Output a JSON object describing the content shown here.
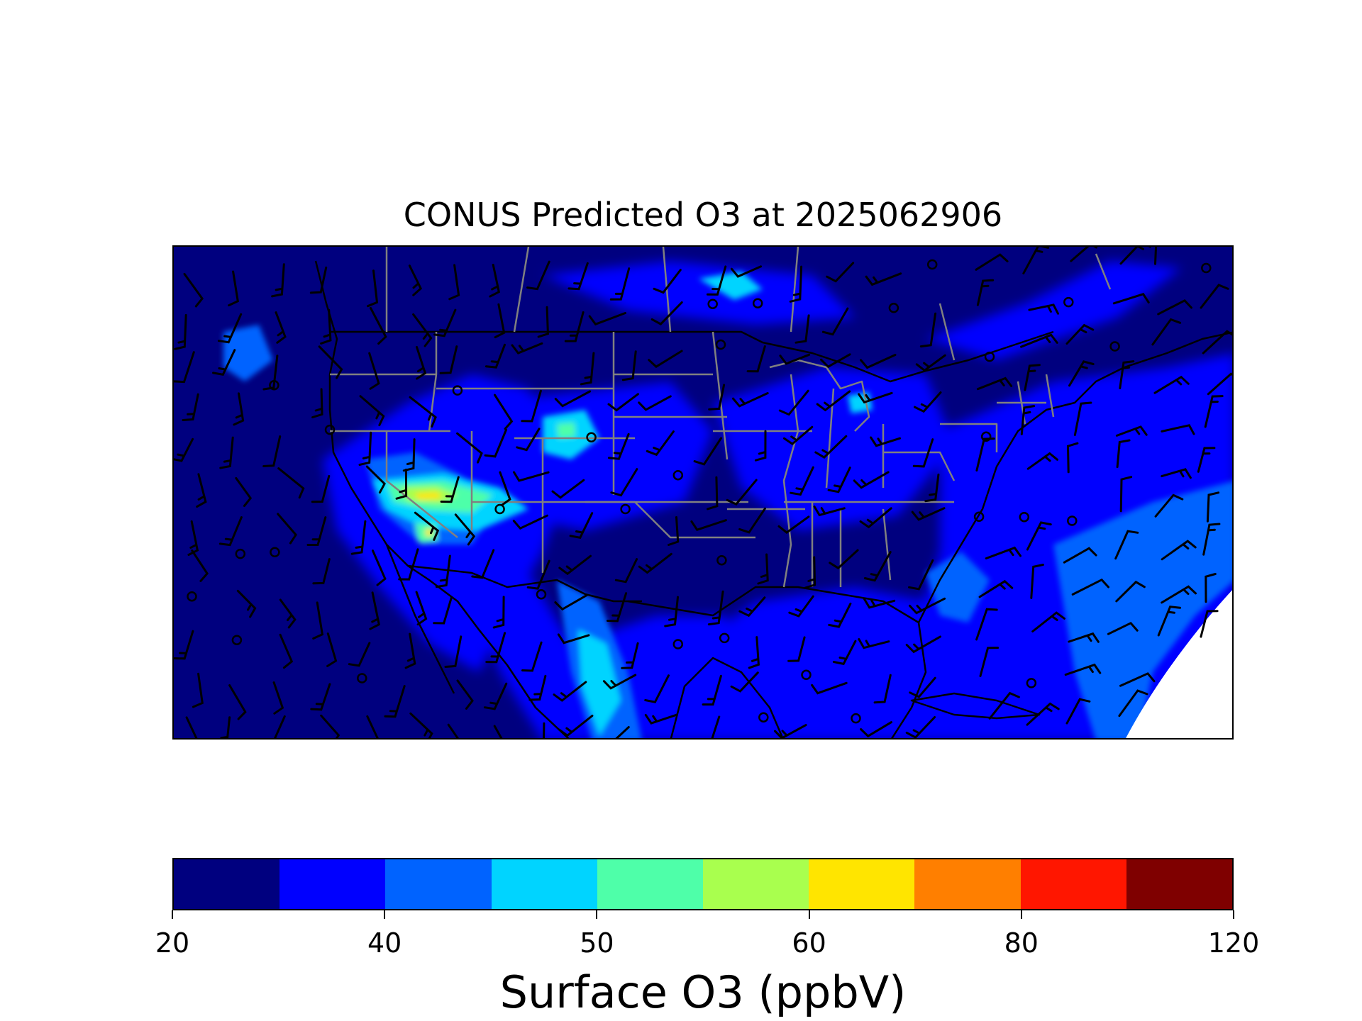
{
  "title": "CONUS Predicted O3 at 2025062906",
  "colorbar": {
    "label": "Surface O3 (ppbV)",
    "tick_labels": [
      "20",
      "40",
      "50",
      "60",
      "80",
      "120"
    ],
    "tick_bin_index": [
      0,
      2,
      4,
      6,
      8,
      10
    ],
    "bins": [
      {
        "from": 20,
        "to": 25,
        "color": "#00007f"
      },
      {
        "from": 25,
        "to": 40,
        "color": "#0000ff"
      },
      {
        "from": 40,
        "to": 45,
        "color": "#0063ff"
      },
      {
        "from": 45,
        "to": 50,
        "color": "#00d4ff"
      },
      {
        "from": 50,
        "to": 55,
        "color": "#4effa9"
      },
      {
        "from": 55,
        "to": 60,
        "color": "#a9ff4e"
      },
      {
        "from": 60,
        "to": 65,
        "color": "#ffe500"
      },
      {
        "from": 65,
        "to": 80,
        "color": "#ff7f00"
      },
      {
        "from": 80,
        "to": 85,
        "color": "#ff1600"
      },
      {
        "from": 85,
        "to": 120,
        "color": "#7f0000"
      }
    ]
  },
  "map": {
    "background_color": "#00007f",
    "state_border_color": "#808080",
    "coastline_color": "#000000",
    "wind_barb_color": "#000000",
    "ozone_fill": "contour-filled",
    "overlays": [
      "wind-barbs",
      "state-borders",
      "coastlines",
      "country-borders"
    ]
  }
}
